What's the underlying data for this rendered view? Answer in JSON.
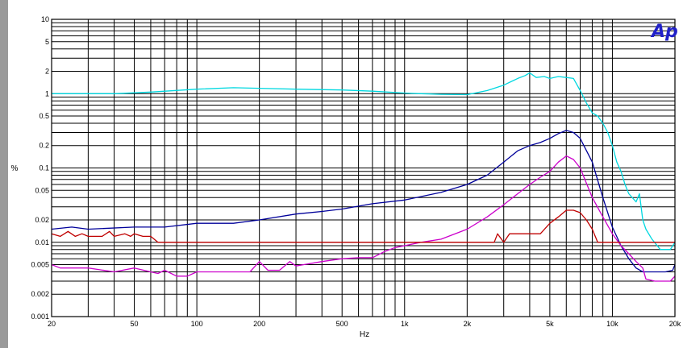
{
  "chart_data": {
    "type": "line",
    "title": "",
    "xlabel": "Hz",
    "ylabel": "%",
    "xscale": "log",
    "yscale": "log",
    "xlim": [
      20,
      20000
    ],
    "ylim": [
      0.001,
      10
    ],
    "grid": true,
    "x_tick_labels": [
      {
        "v": 20,
        "t": "20"
      },
      {
        "v": 50,
        "t": "50"
      },
      {
        "v": 100,
        "t": "100"
      },
      {
        "v": 200,
        "t": "200"
      },
      {
        "v": 500,
        "t": "500"
      },
      {
        "v": 1000,
        "t": "1k"
      },
      {
        "v": 2000,
        "t": "2k"
      },
      {
        "v": 5000,
        "t": "5k"
      },
      {
        "v": 10000,
        "t": "10k"
      },
      {
        "v": 20000,
        "t": "20k"
      }
    ],
    "y_tick_labels": [
      {
        "v": 10,
        "t": "10"
      },
      {
        "v": 5,
        "t": "5"
      },
      {
        "v": 2,
        "t": "2"
      },
      {
        "v": 1,
        "t": "1"
      },
      {
        "v": 0.5,
        "t": "0.5"
      },
      {
        "v": 0.2,
        "t": "0.2"
      },
      {
        "v": 0.1,
        "t": "0.1"
      },
      {
        "v": 0.05,
        "t": "0.05"
      },
      {
        "v": 0.02,
        "t": "0.02"
      },
      {
        "v": 0.01,
        "t": "0.01"
      },
      {
        "v": 0.005,
        "t": "0.005"
      },
      {
        "v": 0.002,
        "t": "0.002"
      },
      {
        "v": 0.001,
        "t": "0.001"
      }
    ],
    "series": [
      {
        "color": "#00d8e0",
        "points": [
          [
            20,
            1.0
          ],
          [
            40,
            1.0
          ],
          [
            60,
            1.05
          ],
          [
            100,
            1.15
          ],
          [
            150,
            1.2
          ],
          [
            200,
            1.18
          ],
          [
            300,
            1.15
          ],
          [
            500,
            1.12
          ],
          [
            700,
            1.08
          ],
          [
            1000,
            1.02
          ],
          [
            1200,
            1.0
          ],
          [
            1500,
            0.98
          ],
          [
            2000,
            0.97
          ],
          [
            2500,
            1.1
          ],
          [
            3000,
            1.3
          ],
          [
            3500,
            1.6
          ],
          [
            3800,
            1.75
          ],
          [
            4000,
            1.9
          ],
          [
            4300,
            1.65
          ],
          [
            4700,
            1.7
          ],
          [
            5000,
            1.6
          ],
          [
            5500,
            1.7
          ],
          [
            6000,
            1.65
          ],
          [
            6500,
            1.6
          ],
          [
            7000,
            1.1
          ],
          [
            7500,
            0.75
          ],
          [
            8000,
            0.55
          ],
          [
            8500,
            0.5
          ],
          [
            9000,
            0.4
          ],
          [
            9500,
            0.3
          ],
          [
            10000,
            0.2
          ],
          [
            10500,
            0.12
          ],
          [
            11000,
            0.09
          ],
          [
            11500,
            0.06
          ],
          [
            12000,
            0.045
          ],
          [
            13000,
            0.035
          ],
          [
            13500,
            0.045
          ],
          [
            14000,
            0.02
          ],
          [
            14500,
            0.015
          ],
          [
            15500,
            0.011
          ],
          [
            17000,
            0.008
          ],
          [
            19000,
            0.008
          ],
          [
            20000,
            0.01
          ]
        ]
      },
      {
        "color": "#00009a",
        "points": [
          [
            20,
            0.015
          ],
          [
            25,
            0.016
          ],
          [
            30,
            0.015
          ],
          [
            50,
            0.016
          ],
          [
            70,
            0.016
          ],
          [
            100,
            0.018
          ],
          [
            150,
            0.018
          ],
          [
            200,
            0.02
          ],
          [
            300,
            0.024
          ],
          [
            400,
            0.026
          ],
          [
            500,
            0.028
          ],
          [
            700,
            0.033
          ],
          [
            1000,
            0.037
          ],
          [
            1500,
            0.047
          ],
          [
            2000,
            0.06
          ],
          [
            2500,
            0.08
          ],
          [
            3000,
            0.12
          ],
          [
            3500,
            0.17
          ],
          [
            4000,
            0.2
          ],
          [
            4500,
            0.22
          ],
          [
            5000,
            0.25
          ],
          [
            5500,
            0.29
          ],
          [
            6000,
            0.32
          ],
          [
            6500,
            0.3
          ],
          [
            7000,
            0.25
          ],
          [
            8000,
            0.12
          ],
          [
            9000,
            0.04
          ],
          [
            10000,
            0.016
          ],
          [
            11000,
            0.009
          ],
          [
            12000,
            0.006
          ],
          [
            13000,
            0.0045
          ],
          [
            14000,
            0.004
          ],
          [
            16000,
            0.004
          ],
          [
            18000,
            0.004
          ],
          [
            19500,
            0.0042
          ],
          [
            20000,
            0.005
          ]
        ]
      },
      {
        "color": "#cc00cc",
        "points": [
          [
            20,
            0.005
          ],
          [
            22,
            0.0045
          ],
          [
            30,
            0.0045
          ],
          [
            40,
            0.004
          ],
          [
            50,
            0.0045
          ],
          [
            60,
            0.004
          ],
          [
            65,
            0.0038
          ],
          [
            70,
            0.0042
          ],
          [
            80,
            0.0035
          ],
          [
            90,
            0.0035
          ],
          [
            100,
            0.004
          ],
          [
            120,
            0.004
          ],
          [
            150,
            0.004
          ],
          [
            180,
            0.004
          ],
          [
            200,
            0.0055
          ],
          [
            220,
            0.0042
          ],
          [
            250,
            0.0042
          ],
          [
            280,
            0.0055
          ],
          [
            300,
            0.0048
          ],
          [
            400,
            0.0055
          ],
          [
            500,
            0.006
          ],
          [
            600,
            0.0062
          ],
          [
            700,
            0.0062
          ],
          [
            800,
            0.0075
          ],
          [
            900,
            0.0085
          ],
          [
            1000,
            0.009
          ],
          [
            1200,
            0.01
          ],
          [
            1500,
            0.011
          ],
          [
            2000,
            0.015
          ],
          [
            2500,
            0.022
          ],
          [
            3000,
            0.032
          ],
          [
            3500,
            0.045
          ],
          [
            4000,
            0.06
          ],
          [
            4500,
            0.075
          ],
          [
            5000,
            0.09
          ],
          [
            5500,
            0.12
          ],
          [
            6000,
            0.145
          ],
          [
            6500,
            0.13
          ],
          [
            7000,
            0.1
          ],
          [
            8000,
            0.04
          ],
          [
            9000,
            0.022
          ],
          [
            10000,
            0.013
          ],
          [
            11000,
            0.009
          ],
          [
            12000,
            0.007
          ],
          [
            13000,
            0.0055
          ],
          [
            14000,
            0.0045
          ],
          [
            14500,
            0.0032
          ],
          [
            16000,
            0.003
          ],
          [
            19000,
            0.003
          ],
          [
            20000,
            0.0035
          ]
        ]
      },
      {
        "color": "#c00000",
        "points": [
          [
            20,
            0.013
          ],
          [
            22,
            0.012
          ],
          [
            24,
            0.014
          ],
          [
            26,
            0.012
          ],
          [
            28,
            0.013
          ],
          [
            30,
            0.012
          ],
          [
            35,
            0.012
          ],
          [
            38,
            0.014
          ],
          [
            40,
            0.012
          ],
          [
            45,
            0.013
          ],
          [
            48,
            0.012
          ],
          [
            50,
            0.013
          ],
          [
            55,
            0.012
          ],
          [
            60,
            0.012
          ],
          [
            65,
            0.01
          ],
          [
            100,
            0.01
          ],
          [
            200,
            0.01
          ],
          [
            500,
            0.01
          ],
          [
            1000,
            0.01
          ],
          [
            2000,
            0.01
          ],
          [
            2500,
            0.01
          ],
          [
            2700,
            0.01
          ],
          [
            2800,
            0.013
          ],
          [
            3000,
            0.01
          ],
          [
            3200,
            0.013
          ],
          [
            4000,
            0.013
          ],
          [
            4500,
            0.013
          ],
          [
            5000,
            0.018
          ],
          [
            5500,
            0.022
          ],
          [
            6000,
            0.027
          ],
          [
            6500,
            0.027
          ],
          [
            7000,
            0.025
          ],
          [
            7500,
            0.02
          ],
          [
            8000,
            0.015
          ],
          [
            8500,
            0.01
          ],
          [
            9000,
            0.01
          ],
          [
            20000,
            0.01
          ]
        ]
      }
    ]
  },
  "logo": {
    "text": "Ap",
    "color": "#2020c8"
  }
}
